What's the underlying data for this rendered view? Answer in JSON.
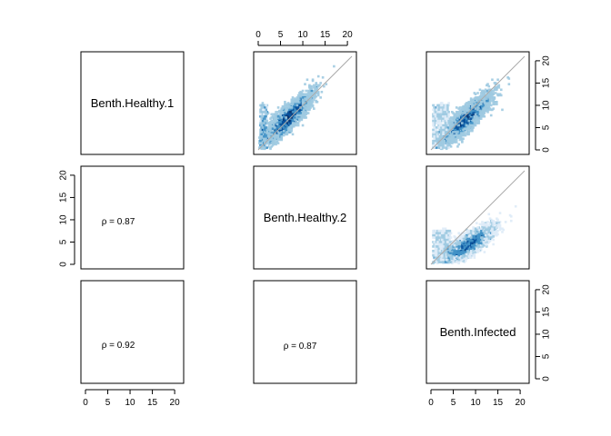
{
  "chart_data": {
    "type": "scatter",
    "subtype": "pairs-plot-smoothscatter",
    "variables": [
      "Benth.Healthy.1",
      "Benth.Healthy.2",
      "Benth.Infected"
    ],
    "axis_range": [
      0,
      21
    ],
    "ticks": [
      "0",
      "5",
      "10",
      "15",
      "20"
    ],
    "tick_values": [
      0,
      5,
      10,
      15,
      20
    ],
    "identity_line": true,
    "point_color_scheme": [
      "#deebf7",
      "#9ecae1",
      "#4292c6",
      "#08519c",
      "#08306b"
    ],
    "correlations": [
      {
        "row": "Benth.Healthy.2",
        "col": "Benth.Healthy.1",
        "rho": 0.87,
        "label": "ρ = 0.87"
      },
      {
        "row": "Benth.Infected",
        "col": "Benth.Healthy.1",
        "rho": 0.92,
        "label": "ρ = 0.92"
      },
      {
        "row": "Benth.Infected",
        "col": "Benth.Healthy.2",
        "rho": 0.87,
        "label": "ρ = 0.87"
      }
    ],
    "scatter_panels": [
      {
        "x": "Benth.Healthy.2",
        "y": "Benth.Healthy.1",
        "density_center": [
          6.5,
          7.0
        ],
        "x_floor_band": [
          0.5,
          2.0
        ]
      },
      {
        "x": "Benth.Infected",
        "y": "Benth.Healthy.1",
        "density_center": [
          8.0,
          7.0
        ],
        "x_floor_band": [
          0.5,
          4.0
        ]
      },
      {
        "x": "Benth.Infected",
        "y": "Benth.Healthy.2",
        "density_center": [
          8.5,
          4.5
        ],
        "x_floor_band": [
          0.5,
          4.5
        ]
      }
    ]
  }
}
